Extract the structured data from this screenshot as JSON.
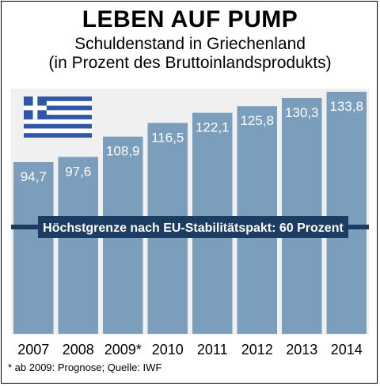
{
  "title": "LEBEN AUF PUMP",
  "subtitle_line1": "Schuldenstand in Griechenland",
  "subtitle_line2": "(in Prozent des Bruttoinlandsprodukts)",
  "footnote": "* ab 2009: Prognose; Quelle: IWF",
  "colors": {
    "bar": "#7a9ebb",
    "panel": "#f0f0f0",
    "ref_line": "#1d3c62",
    "flag_blue": "#2f57a5",
    "bar_text": "#ffffff"
  },
  "chart_data": {
    "type": "bar",
    "categories": [
      "2007",
      "2008",
      "2009*",
      "2010",
      "2011",
      "2012",
      "2013",
      "2014"
    ],
    "values": [
      94.7,
      97.6,
      108.9,
      116.5,
      122.1,
      125.8,
      130.3,
      133.8
    ],
    "value_labels": [
      "94,7",
      "97,6",
      "108,9",
      "116,5",
      "122,1",
      "125,8",
      "130,3",
      "133,8"
    ],
    "reference_line": {
      "value": 60,
      "label": "Höchstgrenze nach EU-Stabilitätspakt: 60 Prozent"
    },
    "grid": false
  }
}
